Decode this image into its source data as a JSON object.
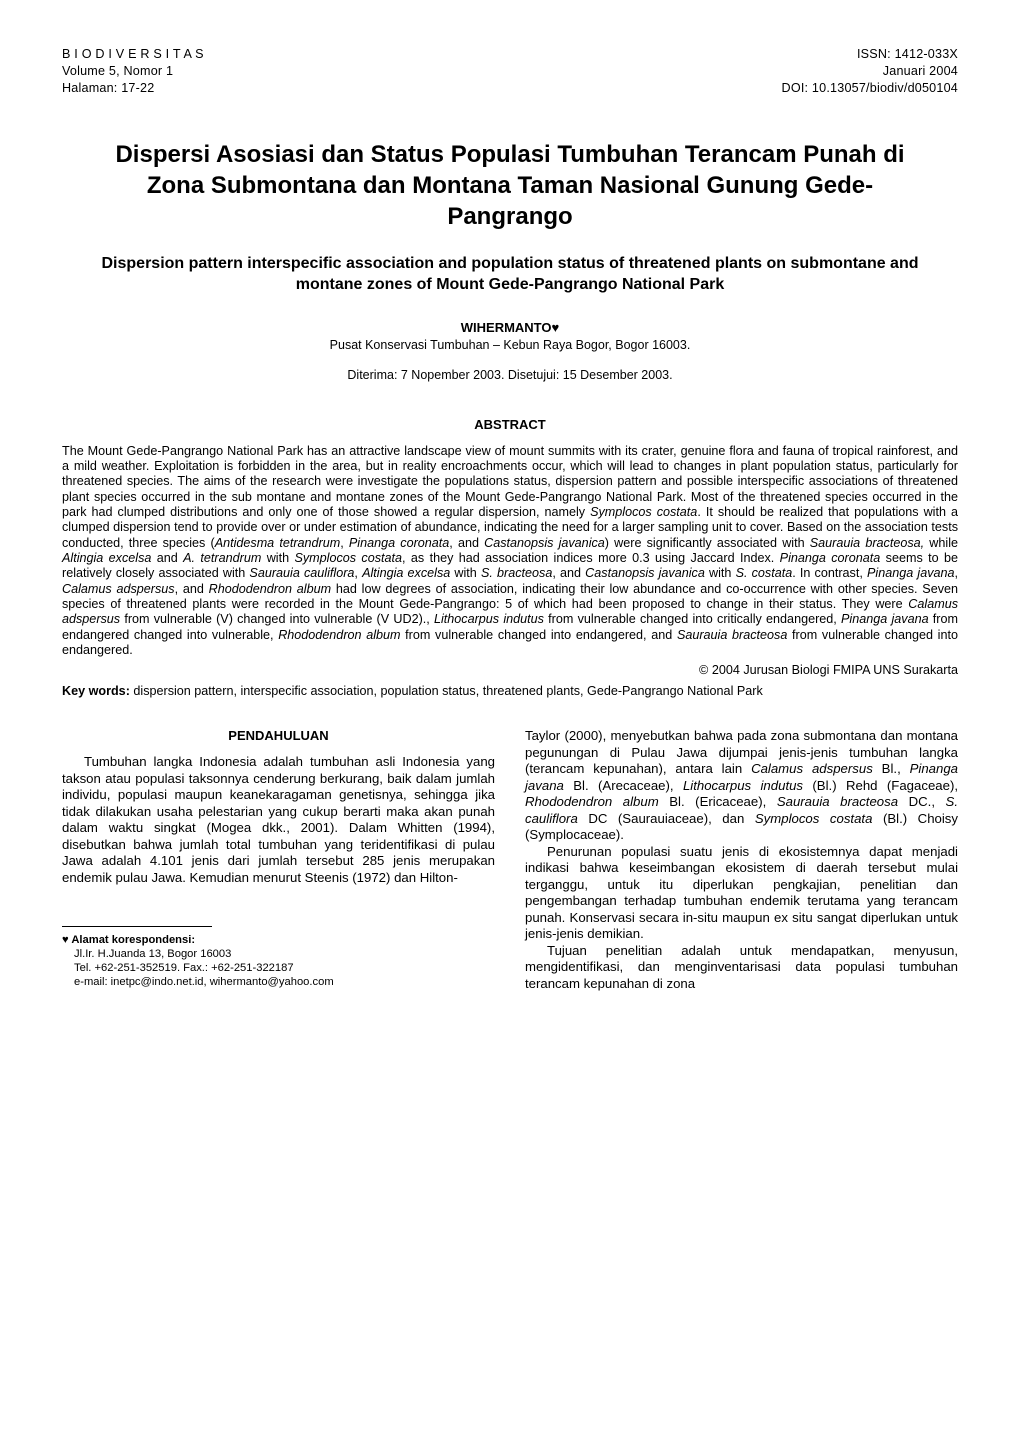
{
  "header": {
    "left_l1": "B I O D I V E R S I T A S",
    "left_l2": "Volume 5, Nomor 1",
    "left_l3": "Halaman: 17-22",
    "right_l1": "ISSN: 1412-033X",
    "right_l2": "Januari 2004",
    "right_l3": "DOI: 10.13057/biodiv/d050104"
  },
  "title_id": "Dispersi Asosiasi dan Status Populasi Tumbuhan Terancam Punah di Zona Submontana dan Montana Taman Nasional Gunung Gede-Pangrango",
  "title_en": "Dispersion pattern interspecific association and population status of threatened plants on submontane and montane zones of Mount Gede-Pangrango National Park",
  "author": "WIHERMANTO",
  "author_mark": "♥",
  "affiliation": "Pusat Konservasi Tumbuhan – Kebun Raya Bogor, Bogor 16003.",
  "dates": "Diterima: 7 Nopember 2003. Disetujui: 15 Desember 2003.",
  "abstract_head": "ABSTRACT",
  "abstract_html": "The Mount Gede-Pangrango National Park has an attractive landscape view of mount summits with its crater, genuine flora and fauna of tropical rainforest, and a mild weather. Exploitation is forbidden in the area, but in reality encroachments occur, which will lead to changes in plant population status, particularly for threatened species. The aims of the research were investigate the populations status, dispersion pattern and possible interspecific associations of threatened plant species occurred in the sub montane and montane zones of the Mount Gede-Pangrango National Park. Most of the threatened species occurred in the park had clumped distributions and only one of those showed a regular dispersion, namely <span class=\"ital\">Symplocos costata</span>. It should be realized that populations with a clumped dispersion tend to provide over or under estimation of abundance, indicating the need for a larger sampling unit to cover. Based on the association tests conducted, three species (<span class=\"ital\">Antidesma tetrandrum</span>, <span class=\"ital\">Pinanga coronata</span>, and <span class=\"ital\">Castanopsis javanica</span>) were significantly associated with <span class=\"ital\">Saurauia bracteosa,</span> while <span class=\"ital\">Altingia excelsa</span> and <span class=\"ital\">A. tetrandrum</span> with <span class=\"ital\">Symplocos costata</span>, as they had association indices more 0.3 using Jaccard Index. <span class=\"ital\">Pinanga coronata</span> seems to be relatively closely associated with <span class=\"ital\">Saurauia cauliflora</span>, <span class=\"ital\">Altingia excelsa</span> with <span class=\"ital\">S. bracteosa</span>, and <span class=\"ital\">Castanopsis javanica</span> with <span class=\"ital\">S. costata</span>. In contrast, <span class=\"ital\">Pinanga javana</span>, <span class=\"ital\">Calamus adspersus</span>, and <span class=\"ital\">Rhododendron album</span> had low degrees of association, indicating their low abundance and co-occurrence with other species. Seven species of threatened plants were recorded in the Mount Gede-Pangrango: 5 of which had been proposed to change in their status. They were <span class=\"ital\">Calamus adspersus</span> from vulnerable (V) changed into vulnerable (V UD2)., <span class=\"ital\">Lithocarpus indutus</span> from vulnerable changed into critically endangered, <span class=\"ital\">Pinanga javana</span> from endangered changed into vulnerable, <span class=\"ital\">Rhododendron album</span> from vulnerable changed into endangered, and <span class=\"ital\">Saurauia bracteosa</span> from vulnerable changed into endangered.",
  "copyright": "© 2004 Jurusan Biologi FMIPA UNS Surakarta",
  "keywords_label": "Key words:",
  "keywords_text": " dispersion pattern, interspecific association, population status, threatened plants, Gede-Pangrango National Park",
  "pendahuluan_head": "PENDAHULUAN",
  "col_left_para": "Tumbuhan langka Indonesia adalah tumbuhan asli Indonesia yang takson atau populasi taksonnya cenderung berkurang, baik dalam jumlah individu, populasi maupun keanekaragaman genetisnya, sehingga jika tidak dilakukan usaha pelestarian yang cukup berarti maka akan punah dalam waktu singkat (Mogea dkk., 2001). Dalam Whitten (1994), disebutkan bahwa jumlah total tumbuhan yang teridentifikasi di pulau Jawa adalah 4.101 jenis dari jumlah tersebut 285 jenis merupakan endemik pulau Jawa. Kemudian menurut Steenis (1972) dan Hilton-",
  "col_right_p1_html": "Taylor (2000), menyebutkan bahwa pada zona submontana dan montana pegunungan di Pulau Jawa dijumpai jenis-jenis tumbuhan langka (terancam kepunahan), antara lain <span class=\"ital\">Calamus adspersus</span> Bl., <span class=\"ital\">Pinanga javana</span> Bl. (Arecaceae), <span class=\"ital\">Lithocarpus indutus</span> (Bl.) Rehd (Fagaceae), <span class=\"ital\">Rhododendron album</span> Bl. (Ericaceae), <span class=\"ital\">Saurauia bracteosa</span> DC., <span class=\"ital\">S. cauliflora</span> DC (Saurauiaceae), dan <span class=\"ital\">Symplocos costata</span> (Bl.) Choisy (Symplocaceae).",
  "col_right_p2": "Penurunan populasi suatu jenis di ekosistemnya dapat menjadi indikasi bahwa keseimbangan ekosistem di daerah tersebut mulai terganggu, untuk itu diperlukan pengkajian, penelitian dan pengembangan terhadap tumbuhan endemik terutama yang terancam punah. Konservasi secara in-situ maupun ex situ sangat diperlukan untuk jenis-jenis demikian.",
  "col_right_p3": "Tujuan penelitian adalah untuk mendapatkan, menyusun, mengidentifikasi, dan menginventarisasi data populasi tumbuhan terancam kepunahan di zona",
  "footnote": {
    "mark": "♥",
    "label": " Alamat korespondensi:",
    "l1": "Jl.Ir. H.Juanda 13, Bogor 16003",
    "l2": "Tel. +62-251-352519. Fax.: +62-251-322187",
    "l3": "e-mail: inetpc@indo.net.id, wihermanto@yahoo.com"
  }
}
